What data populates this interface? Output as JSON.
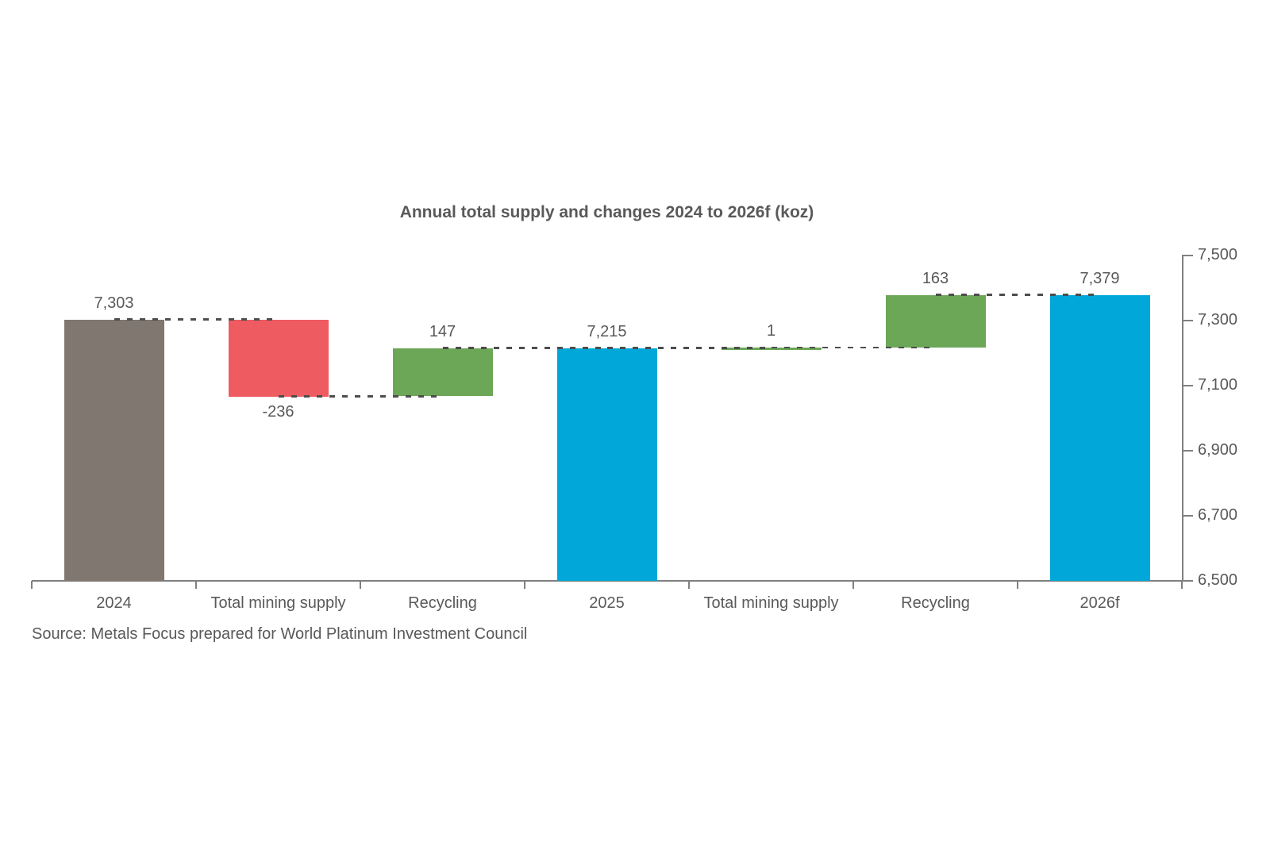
{
  "source": "Source: Metals Focus prepared for World Platinum Investment Council",
  "colors": {
    "total_start": "#7f7770",
    "decrease": "#ee5b61",
    "increase": "#6ca757",
    "total": "#00a7d8",
    "axis": "#808080",
    "text": "#595959",
    "connector": "#4d4d4d"
  },
  "chart_data": {
    "type": "bar",
    "subtype": "waterfall",
    "title": "Annual total supply and changes 2024 to 2026f (koz)",
    "xlabel": "",
    "ylabel": "",
    "grid": false,
    "legend": false,
    "categories": [
      "2024",
      "Total mining supply",
      "Recycling",
      "2025",
      "Total mining supply",
      "Recycling",
      "2026f"
    ],
    "bars": [
      {
        "category": "2024",
        "label": "7,303",
        "value": 7303,
        "from": 6500,
        "to": 7303,
        "role": "total_start",
        "label_position": "above"
      },
      {
        "category": "Total mining supply",
        "label": "-236",
        "value": -236,
        "from": 7303,
        "to": 7067,
        "role": "decrease",
        "label_position": "below"
      },
      {
        "category": "Recycling",
        "label": "147",
        "value": 147,
        "from": 7068,
        "to": 7215,
        "role": "increase",
        "label_position": "above"
      },
      {
        "category": "2025",
        "label": "7,215",
        "value": 7215,
        "from": 6500,
        "to": 7215,
        "role": "total",
        "label_position": "above"
      },
      {
        "category": "Total mining supply",
        "label": "1",
        "value": 1,
        "from": 7215,
        "to": 7216,
        "role": "increase",
        "label_position": "above"
      },
      {
        "category": "Recycling",
        "label": "163",
        "value": 163,
        "from": 7216,
        "to": 7379,
        "role": "increase",
        "label_position": "above"
      },
      {
        "category": "2026f",
        "label": "7,379",
        "value": 7379,
        "from": 6500,
        "to": 7379,
        "role": "total",
        "label_position": "above"
      }
    ],
    "connectors": [
      {
        "level": 7303,
        "from": 0,
        "to": 1
      },
      {
        "level": 7067,
        "from": 1,
        "to": 2
      },
      {
        "level": 7215,
        "from": 2,
        "to": 3
      },
      {
        "level": 7215,
        "from": 3,
        "to": 4
      },
      {
        "level": 7216,
        "from": 4,
        "to": 5
      },
      {
        "level": 7379,
        "from": 5,
        "to": 6
      }
    ],
    "y_axis": {
      "min": 6500,
      "max": 7500,
      "side": "right",
      "ticks": [
        {
          "value": 6500,
          "label": "6,500"
        },
        {
          "value": 6700,
          "label": "6,700"
        },
        {
          "value": 6900,
          "label": "6,900"
        },
        {
          "value": 7100,
          "label": "7,100"
        },
        {
          "value": 7300,
          "label": "7,300"
        },
        {
          "value": 7500,
          "label": "7,500"
        }
      ]
    }
  }
}
